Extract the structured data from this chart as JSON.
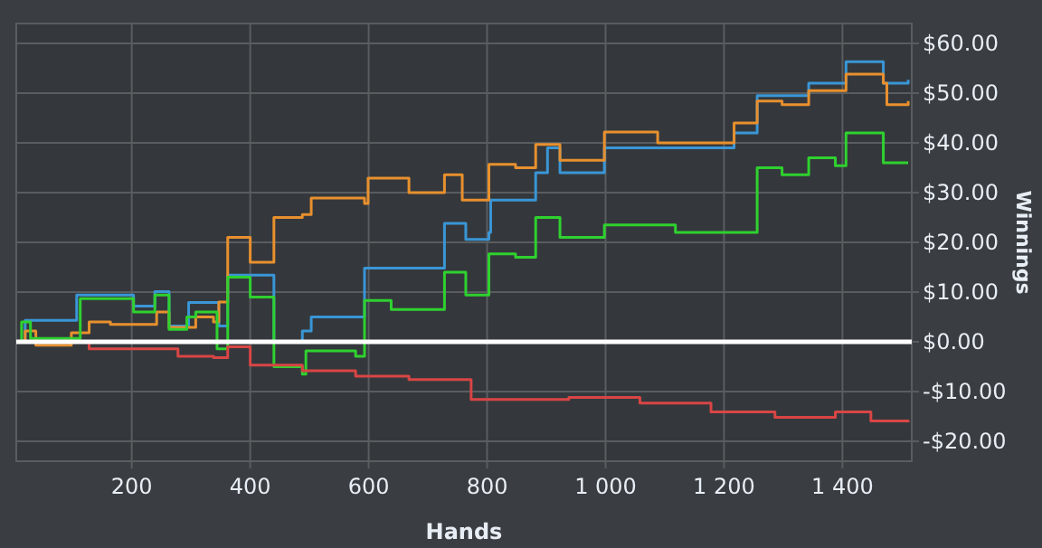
{
  "chart_data": {
    "type": "step",
    "xlabel": "Hands",
    "ylabel": "Winnings",
    "xlim": [
      5,
      1517
    ],
    "ylim": [
      -24,
      64
    ],
    "xticks": [
      200,
      400,
      600,
      800,
      {
        "value": 1000,
        "label": "1 000"
      },
      {
        "value": 1200,
        "label": "1 200"
      },
      {
        "value": 1400,
        "label": "1 400"
      }
    ],
    "yticks": [
      {
        "value": -20,
        "label": "-$20.00"
      },
      {
        "value": -10,
        "label": "-$10.00"
      },
      {
        "value": 0,
        "label": "$0.00"
      },
      {
        "value": 10,
        "label": "$10.00"
      },
      {
        "value": 20,
        "label": "$20.00"
      },
      {
        "value": 30,
        "label": "$30.00"
      },
      {
        "value": 40,
        "label": "$40.00"
      },
      {
        "value": 50,
        "label": "$50.00"
      },
      {
        "value": 60,
        "label": "$60.00"
      }
    ],
    "grid": true,
    "ref_lines": [
      {
        "axis": "y",
        "value": 0,
        "color": "#ffffff"
      }
    ],
    "series": [
      {
        "color": "#3a96d6",
        "x": [
          8,
          20,
          107,
          203,
          239,
          263,
          296,
          347,
          362,
          440,
          488,
          503,
          593,
          728,
          764,
          803,
          806,
          882,
          902,
          923,
          998,
          1217,
          1256,
          1343,
          1406,
          1469,
          1511
        ],
        "values": [
          0,
          4.3,
          9.4,
          7.2,
          10.1,
          3.2,
          7.9,
          3.2,
          13.4,
          0,
          2.2,
          5,
          14.8,
          23.8,
          20.6,
          22,
          28.5,
          34,
          39,
          34,
          39,
          42,
          49.5,
          52,
          56.3,
          52,
          52.7
        ]
      },
      {
        "color": "#e8902e",
        "x": [
          8,
          20,
          38,
          98,
          128,
          164,
          242,
          263,
          308,
          338,
          347,
          362,
          400,
          440,
          488,
          503,
          593,
          599,
          668,
          728,
          758,
          803,
          848,
          882,
          923,
          998,
          1088,
          1217,
          1256,
          1298,
          1343,
          1406,
          1469,
          1475,
          1511
        ],
        "values": [
          0,
          2.2,
          -0.7,
          1.8,
          4,
          3.5,
          6,
          2.9,
          5,
          4,
          8,
          21,
          16,
          25,
          25.6,
          28.9,
          27.8,
          32.9,
          30,
          33.6,
          28.5,
          35.7,
          35,
          39.7,
          36.5,
          42.2,
          40,
          44,
          48.4,
          47.7,
          50.5,
          53.8,
          52,
          47.7,
          48.4
        ]
      },
      {
        "color": "#2fd12f",
        "x": [
          8,
          14,
          29,
          113,
          164,
          203,
          239,
          263,
          293,
          308,
          344,
          362,
          400,
          440,
          488,
          494,
          578,
          593,
          638,
          728,
          764,
          803,
          848,
          882,
          923,
          998,
          1118,
          1256,
          1298,
          1343,
          1388,
          1406,
          1469,
          1511
        ],
        "values": [
          0,
          4,
          0.7,
          8.7,
          8.7,
          6,
          9.4,
          2.5,
          5,
          6,
          -1.4,
          13,
          9,
          -5,
          -6.5,
          -1.8,
          -2.9,
          8.3,
          6.5,
          14,
          9.4,
          17.7,
          17,
          25,
          21,
          23.5,
          22,
          35,
          33.6,
          37,
          35.4,
          42,
          36,
          36
        ]
      },
      {
        "color": "#d94545",
        "x": [
          8,
          128,
          278,
          338,
          362,
          400,
          488,
          578,
          668,
          773,
          938,
          1058,
          1178,
          1286,
          1364,
          1388,
          1448,
          1511
        ],
        "values": [
          0,
          -1.4,
          -2.9,
          -3.2,
          -1,
          -4.7,
          -5.8,
          -6.9,
          -7.6,
          -11.6,
          -11.2,
          -12.3,
          -14.1,
          -15.2,
          -15.2,
          -14.1,
          -15.9,
          -16.2
        ]
      }
    ]
  }
}
